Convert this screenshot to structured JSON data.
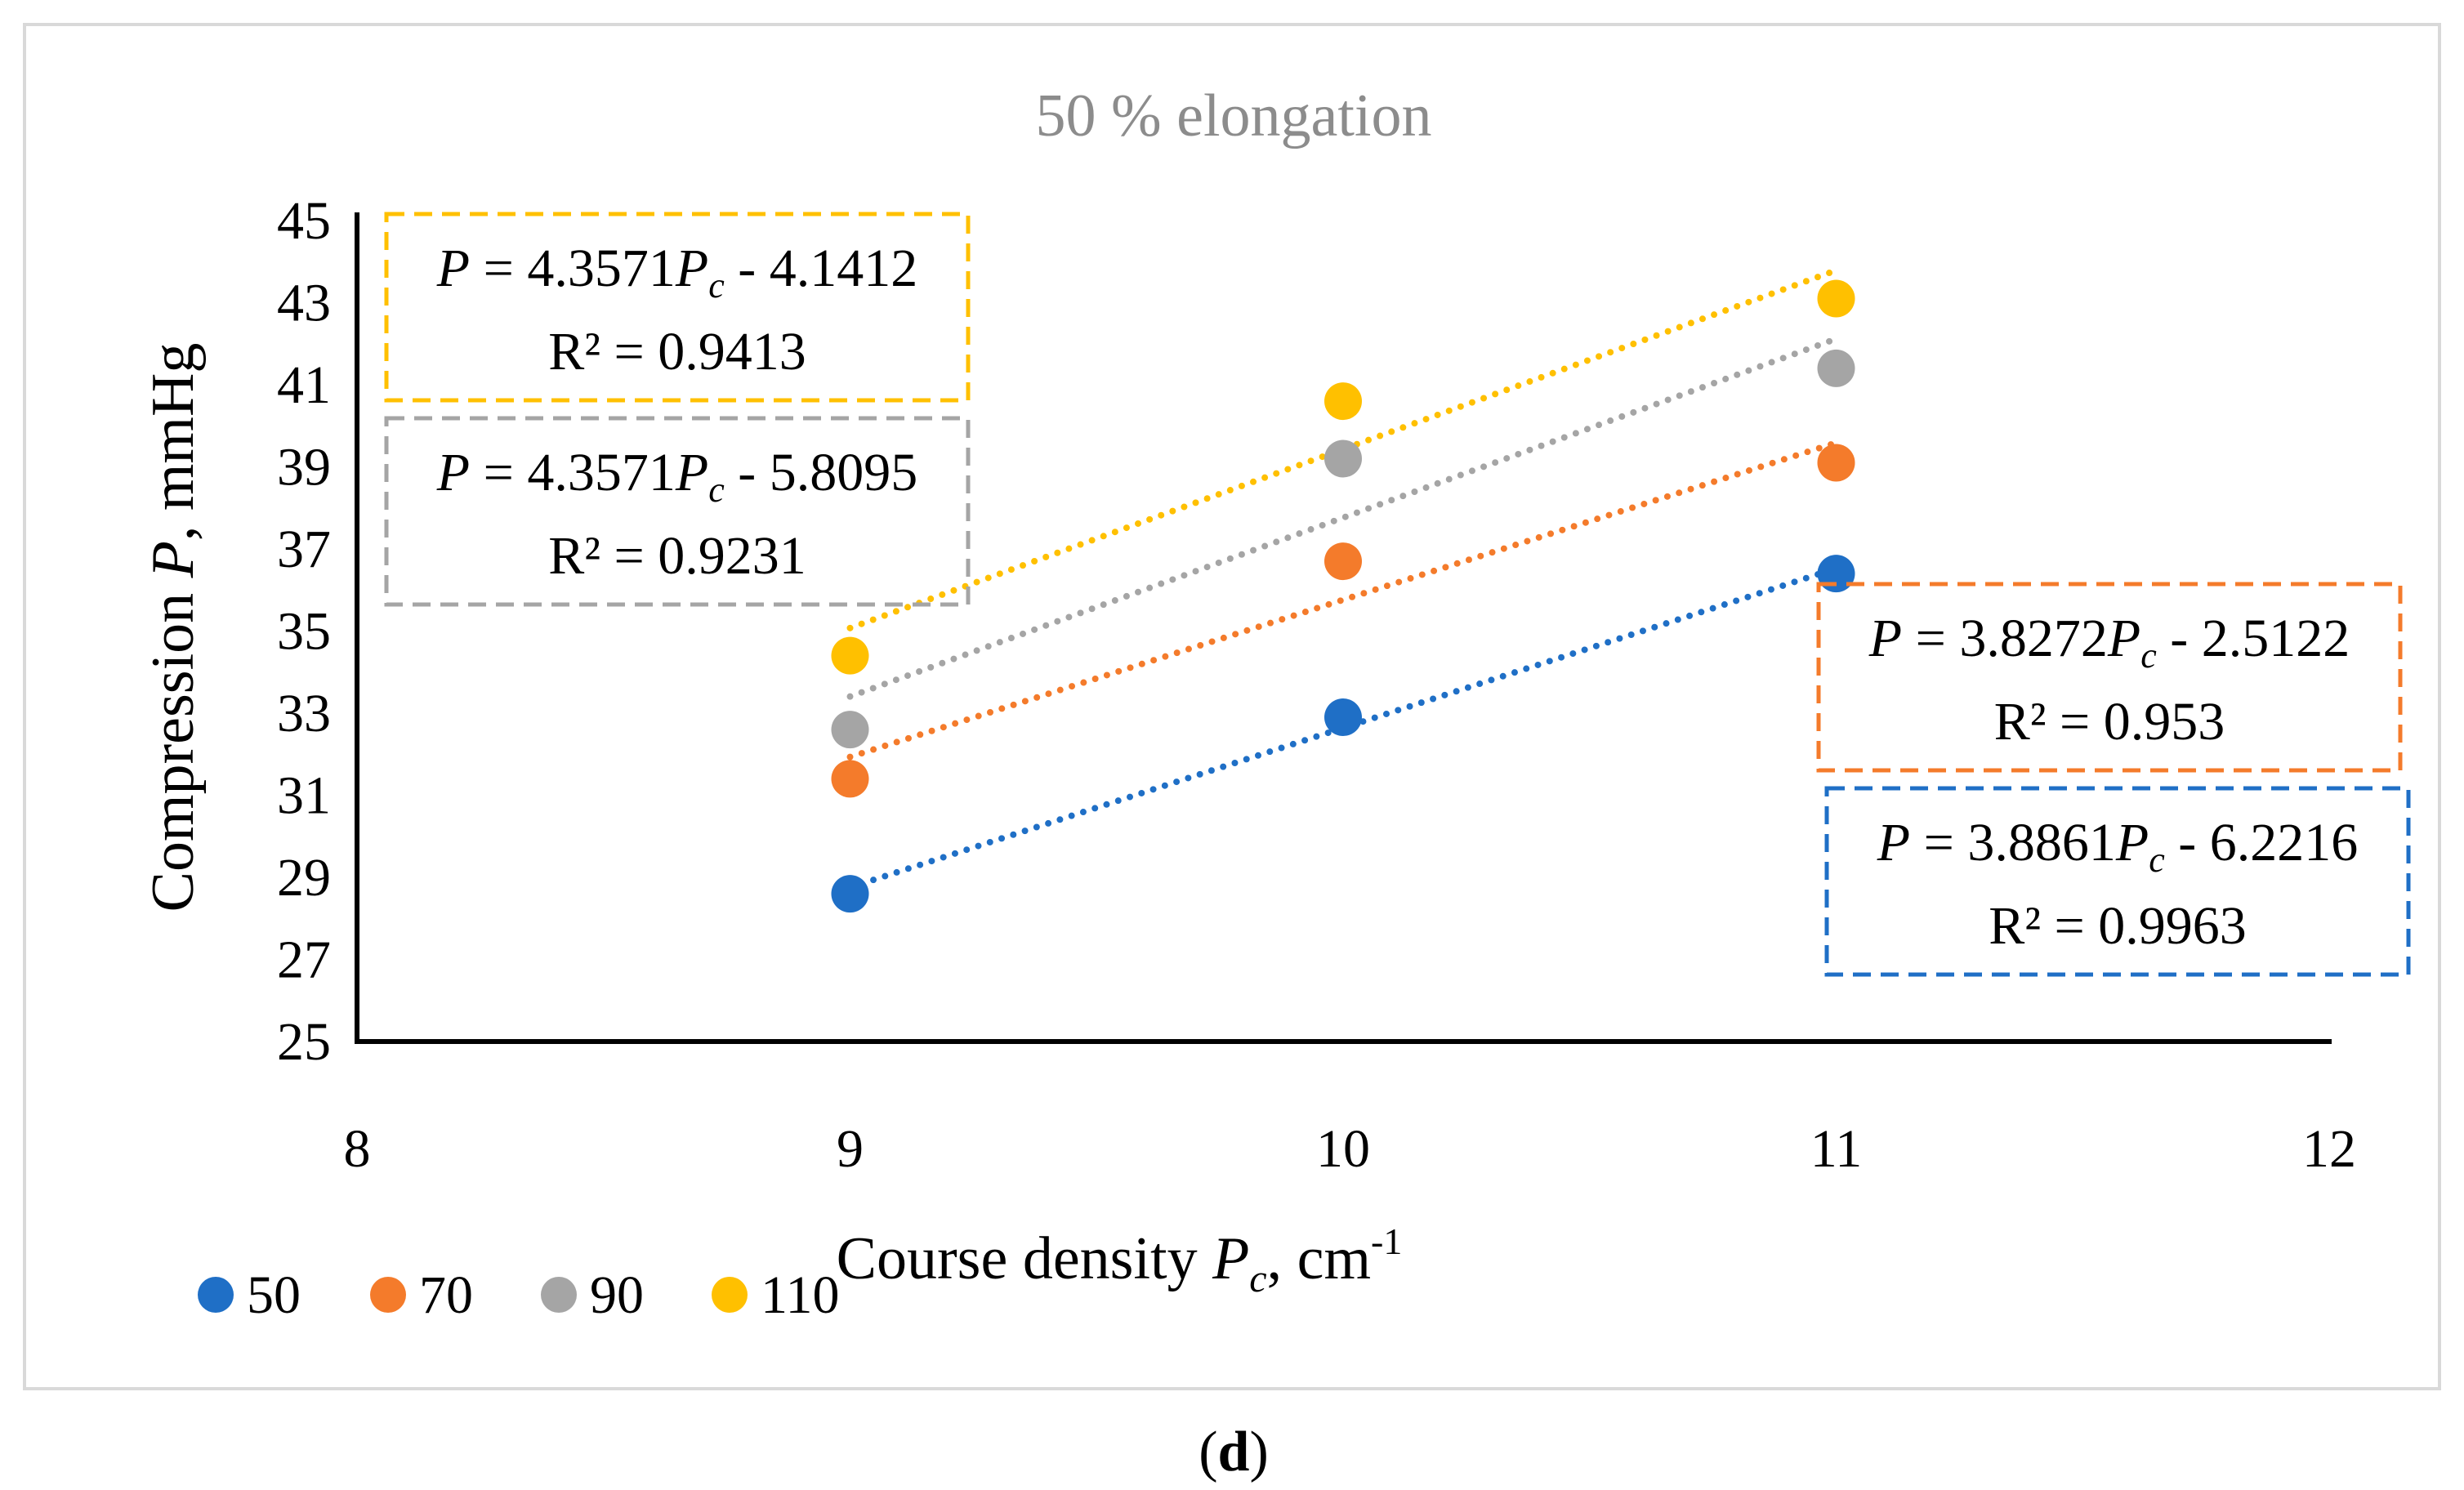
{
  "chart_data": {
    "type": "scatter",
    "title": "50 % elongation",
    "xlabel": "Course density Pc, cm-1",
    "ylabel": "Compression P, mmHg",
    "xlim": [
      8,
      12
    ],
    "ylim": [
      25,
      45
    ],
    "x_ticks": [
      "8",
      "9",
      "10",
      "11",
      "12"
    ],
    "y_ticks": [
      "25",
      "27",
      "29",
      "31",
      "33",
      "35",
      "37",
      "39",
      "41",
      "43",
      "45"
    ],
    "grid": false,
    "legend_position": "bottom-left",
    "series": [
      {
        "name": "50",
        "color": "#1f6fc6",
        "x": [
          9,
          10,
          11
        ],
        "y": [
          28.6,
          32.9,
          36.4
        ],
        "trendline": {
          "slope": 3.8861,
          "intercept": -6.2216,
          "equation": "P = 3.8861Pc - 6.2216",
          "r2": "R² = 0.9963"
        }
      },
      {
        "name": "70",
        "color": "#f47b2b",
        "x": [
          9,
          10,
          11
        ],
        "y": [
          31.4,
          36.7,
          39.1
        ],
        "trendline": {
          "slope": 3.8272,
          "intercept": -2.5122,
          "equation": "P = 3.8272Pc - 2.5122",
          "r2": "R² = 0.953"
        }
      },
      {
        "name": "90",
        "color": "#a5a5a5",
        "x": [
          9,
          10,
          11
        ],
        "y": [
          32.6,
          39.2,
          41.4
        ],
        "trendline": {
          "slope": 4.3571,
          "intercept": -5.8095,
          "equation": "P = 4.3571Pc - 5.8095",
          "r2": "R² = 0.9231"
        }
      },
      {
        "name": "110",
        "color": "#ffc000",
        "x": [
          9,
          10,
          11
        ],
        "y": [
          34.4,
          40.6,
          43.1
        ],
        "trendline": {
          "slope": 4.3571,
          "intercept": -4.1412,
          "equation": "P = 4.3571Pc - 4.1412",
          "r2": "R² = 0.9413"
        }
      }
    ]
  },
  "equations": [
    {
      "series": "110",
      "color": "#ffc000",
      "lhs": "P",
      "coef": " = 4.3571",
      "var": "P",
      "sub": "c",
      "rest": " - 4.1412",
      "r2": "R² = 0.9413"
    },
    {
      "series": "90",
      "color": "#a5a5a5",
      "lhs": "P",
      "coef": " = 4.3571",
      "var": "P",
      "sub": "c",
      "rest": " - 5.8095",
      "r2": "R² = 0.9231"
    },
    {
      "series": "70",
      "color": "#f47b2b",
      "lhs": "P",
      "coef": " = 3.8272",
      "var": "P",
      "sub": "c",
      "rest": " - 2.5122",
      "r2": "R² = 0.953"
    },
    {
      "series": "50",
      "color": "#1f6fc6",
      "lhs": "P",
      "coef": " = 3.8861",
      "var": "P",
      "sub": "c",
      "rest": " - 6.2216",
      "r2": "R² = 0.9963"
    }
  ],
  "axis_titles": {
    "x_prefix": "Course density ",
    "x_var": "P",
    "x_sub": "c",
    "x_unit": ", cm",
    "x_sup": "-1",
    "y_prefix": "Compression ",
    "y_var": "P",
    "y_suffix": ", mmHg"
  },
  "panel_label": {
    "open": "(",
    "letter": "d",
    "close": ")"
  }
}
